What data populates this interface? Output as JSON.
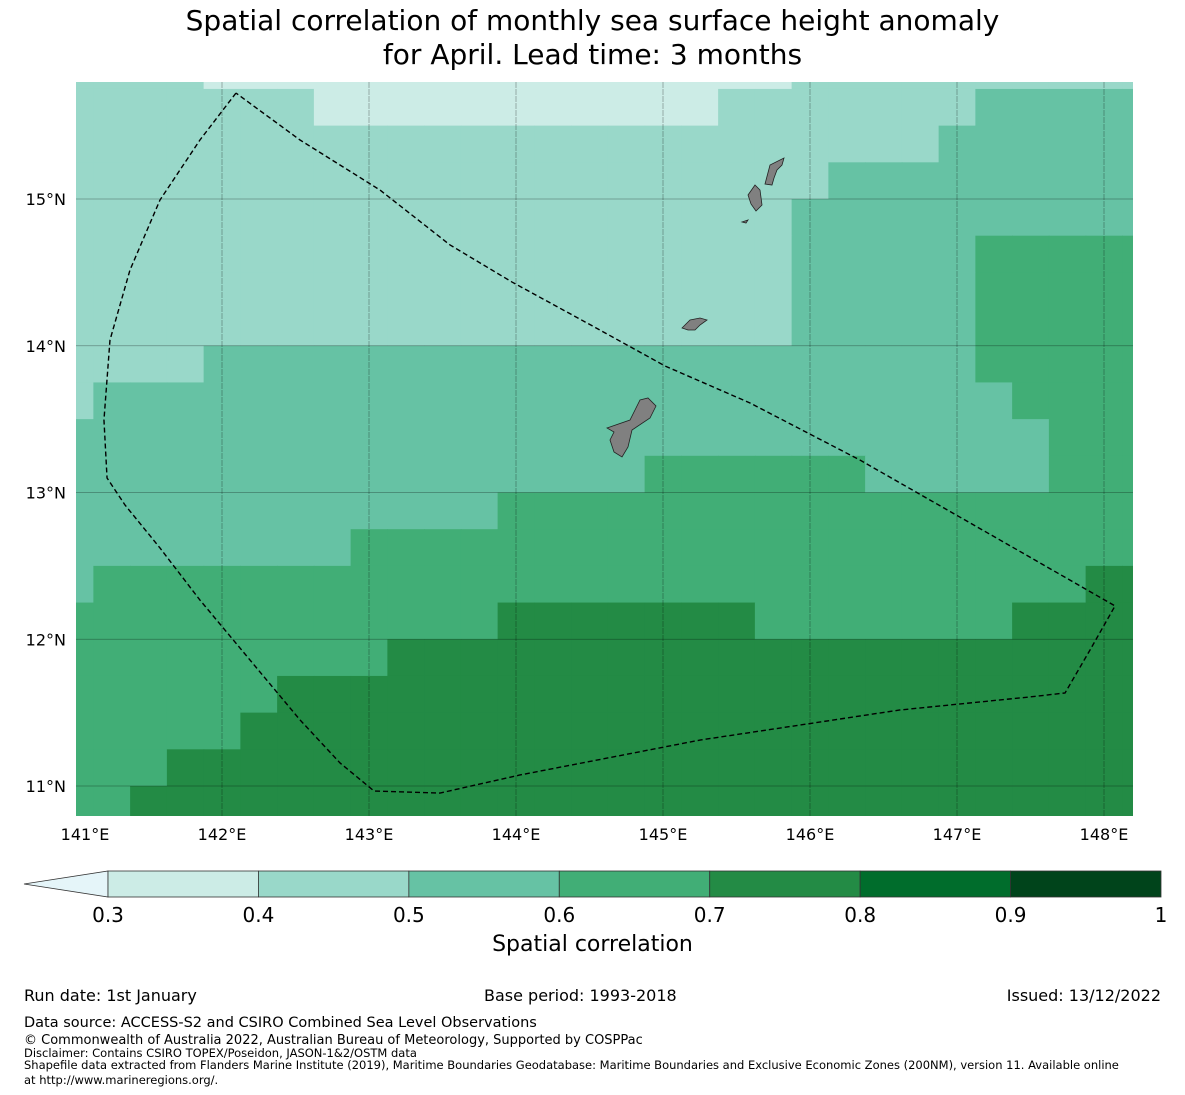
{
  "title": {
    "line1": "Spatial correlation of monthly sea surface height anomaly",
    "line2": "for April. Lead time: 3 months"
  },
  "chart_data": {
    "type": "heatmap",
    "title": "Spatial correlation of monthly sea surface height anomaly for April. Lead time: 3 months",
    "extent": {
      "lon": [
        141.0,
        148.2
      ],
      "lat": [
        10.8,
        15.8
      ]
    },
    "lon_ticks": [
      {
        "value": 141,
        "label": "141°E"
      },
      {
        "value": 142,
        "label": "142°E"
      },
      {
        "value": 143,
        "label": "143°E"
      },
      {
        "value": 144,
        "label": "144°E"
      },
      {
        "value": 145,
        "label": "145°E"
      },
      {
        "value": 146,
        "label": "146°E"
      },
      {
        "value": 147,
        "label": "147°E"
      },
      {
        "value": 148,
        "label": "148°E"
      }
    ],
    "lat_ticks": [
      {
        "value": 15,
        "label": "15°N"
      },
      {
        "value": 14,
        "label": "14°N"
      },
      {
        "value": 13,
        "label": "13°N"
      },
      {
        "value": 12,
        "label": "12°N"
      },
      {
        "value": 11,
        "label": "11°N"
      }
    ],
    "grid": {
      "lon_first_edge": 141.125,
      "lat_top_edge": 15.75,
      "cell_size_deg": 0.25,
      "rows_top_to_bottom_rle": [
        [
          [
            0.45,
            4
          ],
          [
            0.35,
            16
          ],
          [
            0.45,
            10
          ]
        ],
        [
          [
            0.45,
            7
          ],
          [
            0.35,
            11
          ],
          [
            0.45,
            7
          ],
          [
            0.55,
            5
          ]
        ],
        [
          [
            0.45,
            24
          ],
          [
            0.55,
            6
          ]
        ],
        [
          [
            0.45,
            21
          ],
          [
            0.55,
            9
          ]
        ],
        [
          [
            0.45,
            20
          ],
          [
            0.55,
            10
          ]
        ],
        [
          [
            0.45,
            20
          ],
          [
            0.55,
            5
          ],
          [
            0.65,
            5
          ]
        ],
        [
          [
            0.45,
            20
          ],
          [
            0.55,
            5
          ],
          [
            0.65,
            5
          ]
        ],
        [
          [
            0.45,
            20
          ],
          [
            0.55,
            5
          ],
          [
            0.65,
            5
          ]
        ],
        [
          [
            0.45,
            4
          ],
          [
            0.55,
            21
          ],
          [
            0.65,
            5
          ]
        ],
        [
          [
            0.45,
            1
          ],
          [
            0.55,
            25
          ],
          [
            0.65,
            4
          ]
        ],
        [
          [
            0.55,
            27
          ],
          [
            0.65,
            3
          ]
        ],
        [
          [
            0.55,
            16
          ],
          [
            0.65,
            6
          ],
          [
            0.55,
            5
          ],
          [
            0.65,
            3
          ]
        ],
        [
          [
            0.55,
            12
          ],
          [
            0.65,
            18
          ]
        ],
        [
          [
            0.55,
            8
          ],
          [
            0.65,
            22
          ]
        ],
        [
          [
            0.55,
            1
          ],
          [
            0.65,
            27
          ],
          [
            0.75,
            2
          ]
        ],
        [
          [
            0.65,
            12
          ],
          [
            0.75,
            7
          ],
          [
            0.65,
            7
          ],
          [
            0.75,
            4
          ]
        ],
        [
          [
            0.65,
            9
          ],
          [
            0.75,
            21
          ]
        ],
        [
          [
            0.65,
            6
          ],
          [
            0.75,
            24
          ]
        ],
        [
          [
            0.65,
            5
          ],
          [
            0.75,
            25
          ]
        ],
        [
          [
            0.65,
            3
          ],
          [
            0.75,
            27
          ]
        ],
        [
          [
            0.65,
            2
          ],
          [
            0.75,
            28
          ]
        ]
      ]
    },
    "boundary": [
      [
        142.095,
        15.722
      ],
      [
        141.85,
        15.402
      ],
      [
        141.578,
        14.993
      ],
      [
        141.374,
        14.516
      ],
      [
        141.238,
        14.039
      ],
      [
        141.197,
        13.494
      ],
      [
        141.218,
        13.099
      ],
      [
        141.34,
        12.915
      ],
      [
        141.578,
        12.622
      ],
      [
        141.85,
        12.267
      ],
      [
        142.19,
        11.859
      ],
      [
        142.531,
        11.45
      ],
      [
        142.803,
        11.157
      ],
      [
        143.034,
        10.966
      ],
      [
        143.483,
        10.952
      ],
      [
        144.027,
        11.075
      ],
      [
        145.252,
        11.313
      ],
      [
        146.612,
        11.518
      ],
      [
        147.497,
        11.607
      ],
      [
        147.735,
        11.634
      ],
      [
        147.905,
        11.927
      ],
      [
        148.075,
        12.227
      ],
      [
        147.293,
        12.676
      ],
      [
        146.34,
        13.221
      ],
      [
        145.592,
        13.61
      ],
      [
        145.014,
        13.862
      ],
      [
        144.571,
        14.107
      ],
      [
        143.973,
        14.434
      ],
      [
        143.551,
        14.687
      ],
      [
        143.075,
        15.061
      ],
      [
        142.531,
        15.402
      ],
      [
        142.095,
        15.722
      ]
    ],
    "colorbar": {
      "bounds": [
        0.3,
        0.4,
        0.5,
        0.6,
        0.7,
        0.8,
        0.9,
        1.0
      ],
      "tick_labels": [
        "0.3",
        "0.4",
        "0.5",
        "0.6",
        "0.7",
        "0.8",
        "0.9",
        "1"
      ],
      "colors": [
        "#ccece6",
        "#99d8c9",
        "#66c2a4",
        "#41ae76",
        "#238b45",
        "#006d2c",
        "#00441b"
      ],
      "under_color": "#e5f5f9",
      "label": "Spatial correlation"
    },
    "land_color": "#808080"
  },
  "footer": {
    "run_date": "Run date: 1st January",
    "base_period": "Base period: 1993-2018",
    "issued": "Issued: 13/12/2022",
    "data_source": "Data source: ACCESS-S2 and CSIRO Combined Sea Level Observations",
    "copyright": "© Commonwealth of Australia 2022, Australian Bureau of Meteorology, Supported by COSPPac",
    "disclaimer": "Disclaimer: Contains CSIRO TOPEX/Poseidon, JASON-1&2/OSTM data",
    "shapefile_1": "Shapefile data extracted from Flanders Marine Institute (2019), Maritime Boundaries Geodatabase: Maritime Boundaries and Exclusive Economic Zones (200NM), version 11. Available online",
    "shapefile_2": "at http://www.marineregions.org/."
  }
}
